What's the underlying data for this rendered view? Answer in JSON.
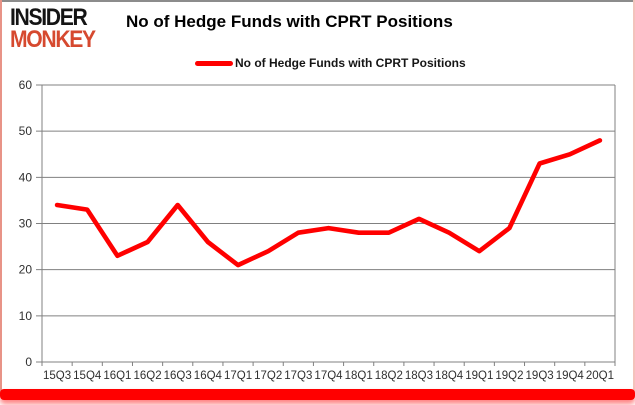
{
  "logo": {
    "line1": "INSIDER",
    "line2": "MONKEY",
    "accent_color": "#D6492F"
  },
  "header": {
    "title": "No of Hedge Funds with CPRT Positions"
  },
  "legend": {
    "label": "No of Hedge Funds with CPRT Positions",
    "swatch_color": "#FF0000"
  },
  "chart_data": {
    "type": "line",
    "title": "No of Hedge Funds with CPRT Positions",
    "categories": [
      "15Q3",
      "15Q4",
      "16Q1",
      "16Q2",
      "16Q3",
      "16Q4",
      "17Q1",
      "17Q2",
      "17Q3",
      "17Q4",
      "18Q1",
      "18Q2",
      "18Q3",
      "18Q4",
      "19Q1",
      "19Q2",
      "19Q3",
      "19Q4",
      "20Q1"
    ],
    "series": [
      {
        "name": "No of Hedge Funds with CPRT Positions",
        "color": "#FF0000",
        "values": [
          34,
          33,
          23,
          26,
          34,
          26,
          21,
          24,
          28,
          29,
          28,
          28,
          31,
          28,
          24,
          29,
          43,
          45,
          48
        ]
      }
    ],
    "xlabel": "",
    "ylabel": "",
    "ylim": [
      0,
      60
    ],
    "yticks": [
      0,
      10,
      20,
      30,
      40,
      50,
      60
    ],
    "grid": true,
    "gridline_color": "#808080",
    "axis_label_color": "#303030",
    "legend_position": "top-center"
  },
  "frame": {
    "bottom_bar_color": "#FF0000",
    "top_border_color": "#8C8C8C",
    "side_border_color": "#E89387"
  }
}
